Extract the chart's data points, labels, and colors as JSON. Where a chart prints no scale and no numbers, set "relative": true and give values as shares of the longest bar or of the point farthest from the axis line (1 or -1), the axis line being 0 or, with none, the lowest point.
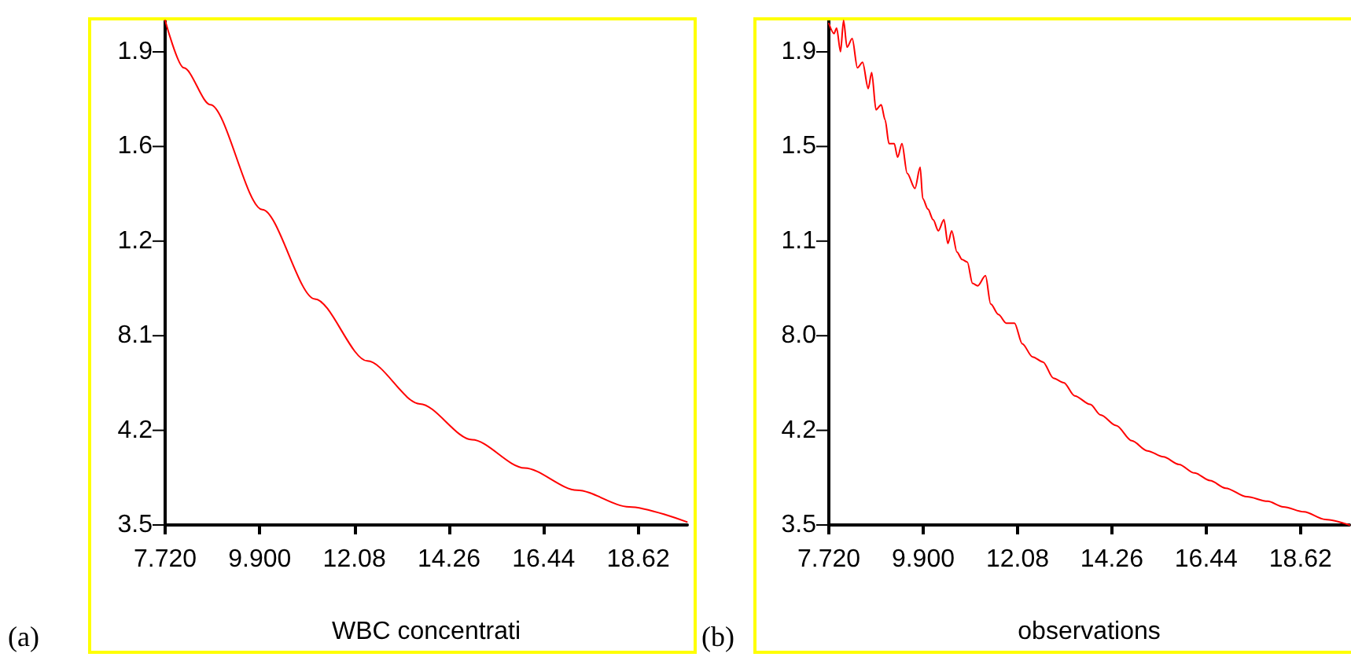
{
  "chart_data": [
    {
      "type": "line",
      "xlabel": "WBC concentrati",
      "annotations": [
        "(a)",
        "3.5",
        "4.2",
        "8.1",
        "1.2",
        "1.6",
        "1.9"
      ],
      "relative": true,
      "grid": false,
      "marker": "none",
      "line_style": "solid",
      "xlim": [
        7.72,
        19.75
      ],
      "xticks": [
        {
          "value": 7.72,
          "label": "7.720"
        },
        {
          "value": 9.9,
          "label": "9.900"
        },
        {
          "value": 12.08,
          "label": "12.08"
        },
        {
          "value": 14.26,
          "label": "14.26"
        },
        {
          "value": 16.44,
          "label": "16.44"
        },
        {
          "value": 18.62,
          "label": "18.62"
        }
      ],
      "series": [
        {
          "color": "#ff0000",
          "x": [
            7.72,
            8.15,
            8.76,
            9.96,
            11.17,
            12.38,
            13.59,
            14.79,
            16.0,
            17.21,
            18.41,
            19.74
          ],
          "values": [
            1,
            0.906,
            0.833,
            0.625,
            0.448,
            0.325,
            0.24,
            0.169,
            0.113,
            0.069,
            0.036,
            0.006
          ]
        }
      ]
    },
    {
      "type": "line",
      "xlabel": "observations",
      "annotations": [
        "(b)",
        "3.5",
        "4.2",
        "8.0",
        "1.1",
        "1.5",
        "1.9"
      ],
      "relative": true,
      "grid": false,
      "marker": "none",
      "line_style": "solid",
      "xlim": [
        7.72,
        19.75
      ],
      "xticks": [
        {
          "value": 7.72,
          "label": "7.720"
        },
        {
          "value": 9.9,
          "label": "9.900"
        },
        {
          "value": 12.08,
          "label": "12.08"
        },
        {
          "value": 14.26,
          "label": "14.26"
        },
        {
          "value": 16.44,
          "label": "16.44"
        },
        {
          "value": 18.62,
          "label": "18.62"
        }
      ],
      "series": [
        {
          "color": "#ff0000",
          "x": [
            7.72,
            7.84,
            7.9,
            7.99,
            8.06,
            8.14,
            8.26,
            8.38,
            8.5,
            8.63,
            8.71,
            8.81,
            8.93,
            9.02,
            9.11,
            9.23,
            9.31,
            9.41,
            9.53,
            9.71,
            9.83,
            9.89,
            10.01,
            10.13,
            10.25,
            10.38,
            10.47,
            10.56,
            10.68,
            10.8,
            10.92,
            11.04,
            11.16,
            11.34,
            11.46,
            11.64,
            11.82,
            12.01,
            12.19,
            12.43,
            12.67,
            12.91,
            13.15,
            13.4,
            13.76,
            14.0,
            14.36,
            14.72,
            15.08,
            15.45,
            15.81,
            16.17,
            16.53,
            16.89,
            17.38,
            17.86,
            18.22,
            18.7,
            19.19,
            19.75
          ],
          "values": [
            0.994,
            0.974,
            0.985,
            0.938,
            1,
            0.947,
            0.964,
            0.906,
            0.917,
            0.865,
            0.897,
            0.823,
            0.833,
            0.803,
            0.756,
            0.756,
            0.729,
            0.756,
            0.697,
            0.667,
            0.709,
            0.647,
            0.626,
            0.605,
            0.583,
            0.605,
            0.558,
            0.583,
            0.541,
            0.526,
            0.521,
            0.479,
            0.474,
            0.494,
            0.438,
            0.417,
            0.4,
            0.4,
            0.359,
            0.333,
            0.323,
            0.291,
            0.282,
            0.256,
            0.239,
            0.218,
            0.197,
            0.167,
            0.147,
            0.135,
            0.12,
            0.103,
            0.088,
            0.073,
            0.056,
            0.047,
            0.036,
            0.026,
            0.011,
            0
          ]
        }
      ]
    }
  ]
}
